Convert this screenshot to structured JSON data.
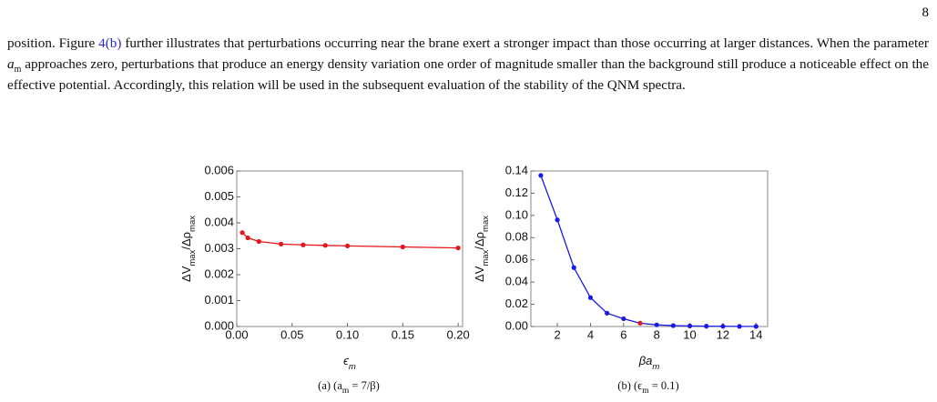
{
  "page_number": "8",
  "paragraph": [
    "position. Figure ",
    "4(b)",
    " further illustrates that perturbations occurring near the brane exert a stronger impact than those occurring at larger distances. When the parameter ",
    "a",
    "m",
    " approaches zero, perturbations that produce an energy density variation one order of magnitude smaller than the background still produce a noticeable effect on the effective potential. Accordingly, this relation will be used in the subsequent evaluation of the stability of the QNM spectra."
  ],
  "chart_data": [
    {
      "type": "line",
      "x_label": [
        "ϵ",
        "m"
      ],
      "y_label": [
        "ΔV",
        "max",
        "/Δρ",
        "max"
      ],
      "caption": [
        "(a) (a",
        "m",
        " = 7/β)"
      ],
      "x": [
        0.005,
        0.01,
        0.02,
        0.04,
        0.06,
        0.08,
        0.1,
        0.15,
        0.2
      ],
      "series": [
        {
          "color": "#e8141b",
          "values": [
            0.00362,
            0.00342,
            0.00328,
            0.00318,
            0.00315,
            0.00313,
            0.00311,
            0.00307,
            0.00303
          ]
        }
      ],
      "xlim": [
        0,
        0.204
      ],
      "ylim": [
        0,
        0.006
      ],
      "xticks": [
        {
          "value": 0,
          "label": "0.00"
        },
        {
          "value": 0.05,
          "label": "0.05"
        },
        {
          "value": 0.1,
          "label": "0.10"
        },
        {
          "value": 0.15,
          "label": "0.15"
        },
        {
          "value": 0.2,
          "label": "0.20"
        }
      ],
      "yticks": [
        {
          "value": 0,
          "label": "0.000"
        },
        {
          "value": 0.001,
          "label": "0.001"
        },
        {
          "value": 0.002,
          "label": "0.002"
        },
        {
          "value": 0.003,
          "label": "0.003"
        },
        {
          "value": 0.004,
          "label": "0.004"
        },
        {
          "value": 0.005,
          "label": "0.005"
        },
        {
          "value": 0.006,
          "label": "0.006"
        }
      ]
    },
    {
      "type": "line",
      "x_label": [
        "βa",
        "m"
      ],
      "y_label": [
        "ΔV",
        "max",
        "/Δρ",
        "max"
      ],
      "caption": [
        "(b) (ϵ",
        "m",
        " = 0.1)"
      ],
      "x": [
        1,
        2,
        3,
        4,
        5,
        6,
        7,
        8,
        9,
        10,
        11,
        12,
        13,
        14
      ],
      "series": [
        {
          "color": "#1a1ae6",
          "values": [
            0.136,
            0.096,
            0.053,
            0.026,
            0.012,
            0.007,
            0.003,
            0.0015,
            0.0008,
            0.0005,
            0.0003,
            0.0002,
            0.0001,
            0.0001
          ],
          "marker_colors": [
            "#1a1ae6",
            "#1a1ae6",
            "#1a1ae6",
            "#1a1ae6",
            "#1a1ae6",
            "#1a1ae6",
            "#e8141b",
            "#1a1ae6",
            "#1a1ae6",
            "#1a1ae6",
            "#1a1ae6",
            "#1a1ae6",
            "#1a1ae6",
            "#1a1ae6"
          ]
        }
      ],
      "xlim": [
        0.4,
        14.7
      ],
      "ylim": [
        0,
        0.14
      ],
      "xticks": [
        2,
        4,
        6,
        8,
        10,
        12,
        14
      ],
      "yticks": [
        {
          "value": 0,
          "label": "0.00"
        },
        {
          "value": 0.02,
          "label": "0.02"
        },
        {
          "value": 0.04,
          "label": "0.04"
        },
        {
          "value": 0.06,
          "label": "0.06"
        },
        {
          "value": 0.08,
          "label": "0.08"
        },
        {
          "value": 0.1,
          "label": "0.10"
        },
        {
          "value": 0.12,
          "label": "0.12"
        },
        {
          "value": 0.14,
          "label": "0.14"
        }
      ]
    }
  ]
}
